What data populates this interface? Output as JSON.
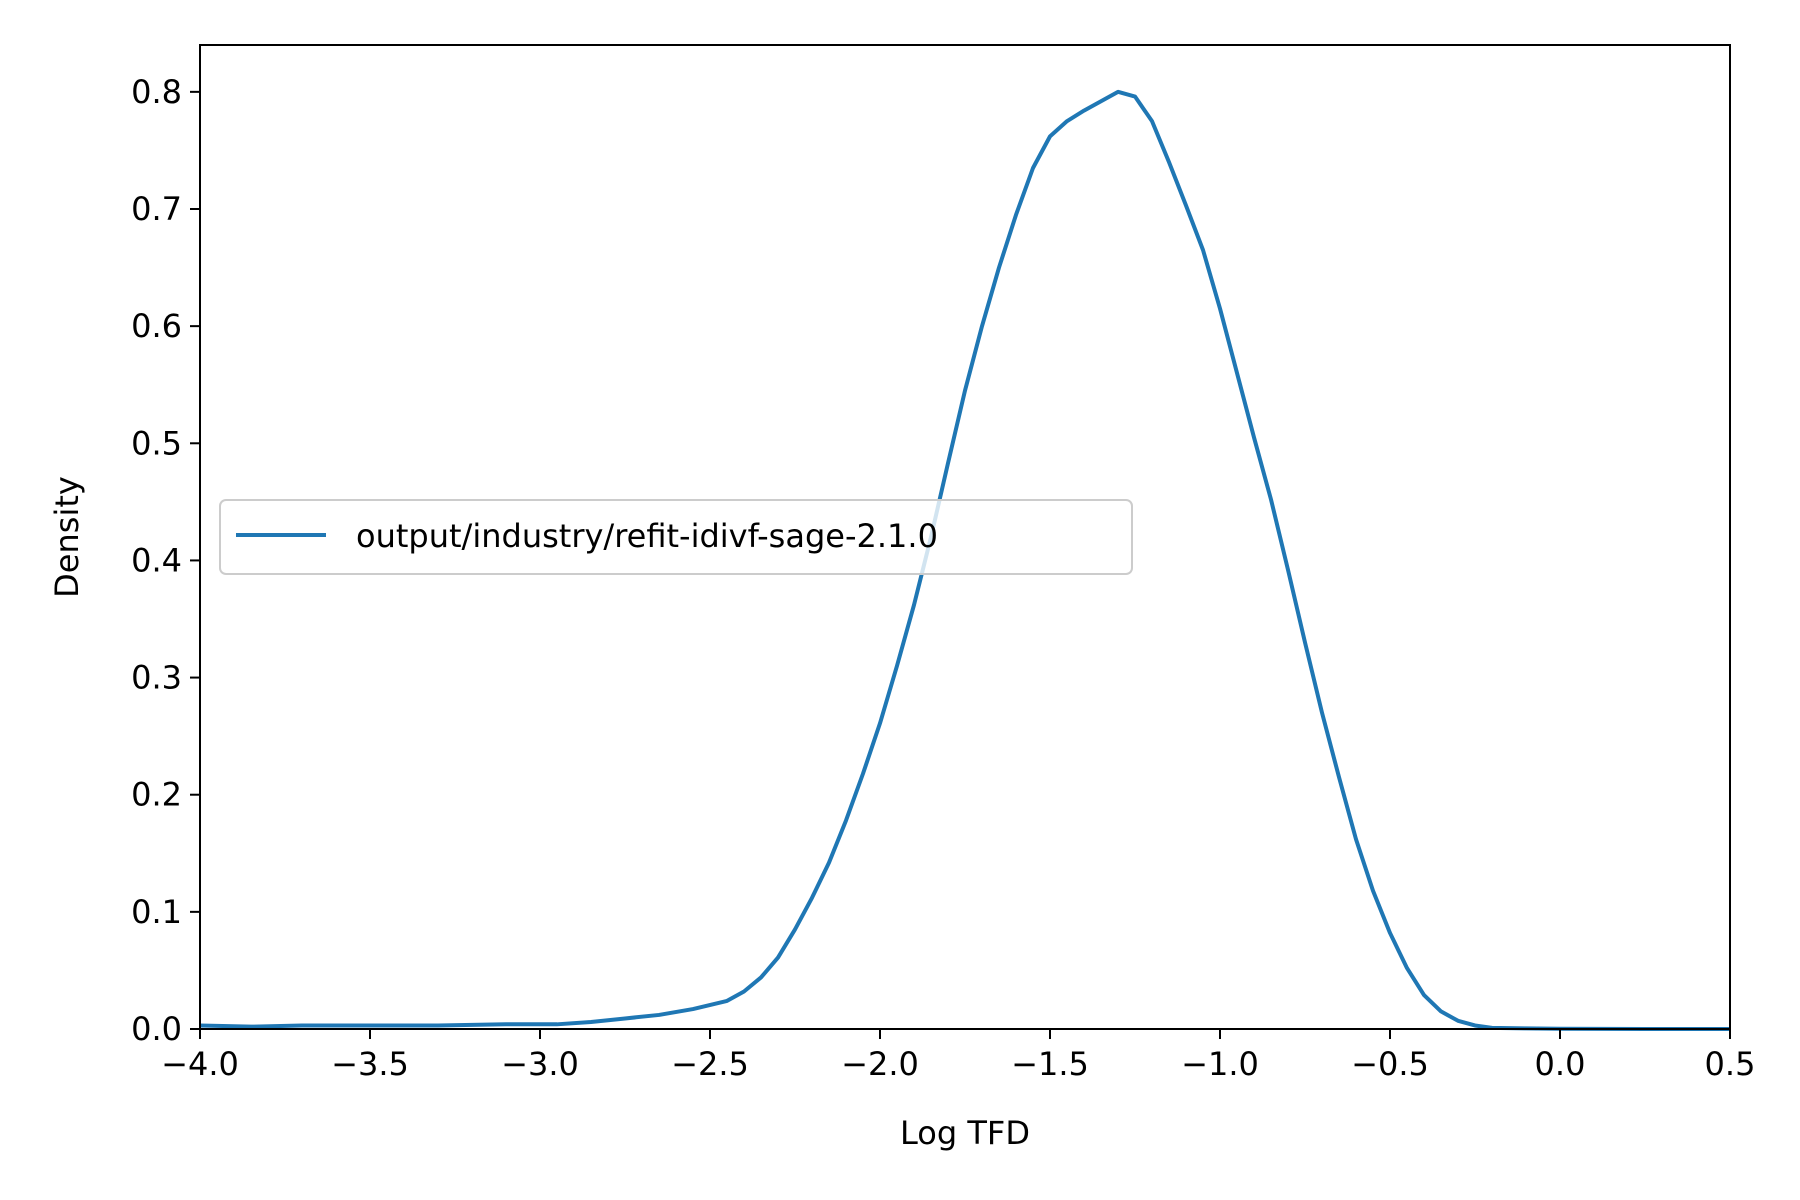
{
  "chart_data": {
    "type": "line",
    "xlabel": "Log TFD",
    "ylabel": "Density",
    "xlim": [
      -4.0,
      0.5
    ],
    "ylim": [
      0.0,
      0.84
    ],
    "x_ticks": [
      "−4.0",
      "−3.5",
      "−3.0",
      "−2.5",
      "−2.0",
      "−1.5",
      "−1.0",
      "−0.5",
      "0.0",
      "0.5"
    ],
    "y_ticks": [
      "0.0",
      "0.1",
      "0.2",
      "0.3",
      "0.4",
      "0.5",
      "0.6",
      "0.7",
      "0.8"
    ],
    "grid": false,
    "legend_position": "center-left",
    "series": [
      {
        "name": "output/industry/refit-idivf-sage-2.1.0",
        "color": "#1f77b4",
        "points": [
          [
            -4.0,
            0.003
          ],
          [
            -3.85,
            0.002
          ],
          [
            -3.7,
            0.003
          ],
          [
            -3.5,
            0.003
          ],
          [
            -3.3,
            0.003
          ],
          [
            -3.1,
            0.004
          ],
          [
            -2.95,
            0.004
          ],
          [
            -2.85,
            0.006
          ],
          [
            -2.75,
            0.009
          ],
          [
            -2.65,
            0.012
          ],
          [
            -2.55,
            0.017
          ],
          [
            -2.45,
            0.024
          ],
          [
            -2.4,
            0.032
          ],
          [
            -2.35,
            0.044
          ],
          [
            -2.3,
            0.061
          ],
          [
            -2.25,
            0.085
          ],
          [
            -2.2,
            0.112
          ],
          [
            -2.15,
            0.142
          ],
          [
            -2.1,
            0.178
          ],
          [
            -2.05,
            0.218
          ],
          [
            -2.0,
            0.261
          ],
          [
            -1.95,
            0.31
          ],
          [
            -1.9,
            0.362
          ],
          [
            -1.85,
            0.42
          ],
          [
            -1.8,
            0.483
          ],
          [
            -1.75,
            0.545
          ],
          [
            -1.7,
            0.6
          ],
          [
            -1.65,
            0.65
          ],
          [
            -1.6,
            0.695
          ],
          [
            -1.55,
            0.735
          ],
          [
            -1.5,
            0.762
          ],
          [
            -1.45,
            0.775
          ],
          [
            -1.4,
            0.784
          ],
          [
            -1.35,
            0.792
          ],
          [
            -1.3,
            0.8
          ],
          [
            -1.25,
            0.796
          ],
          [
            -1.2,
            0.775
          ],
          [
            -1.15,
            0.74
          ],
          [
            -1.1,
            0.703
          ],
          [
            -1.05,
            0.665
          ],
          [
            -1.0,
            0.615
          ],
          [
            -0.95,
            0.56
          ],
          [
            -0.9,
            0.505
          ],
          [
            -0.85,
            0.452
          ],
          [
            -0.8,
            0.392
          ],
          [
            -0.75,
            0.33
          ],
          [
            -0.7,
            0.27
          ],
          [
            -0.65,
            0.215
          ],
          [
            -0.6,
            0.162
          ],
          [
            -0.55,
            0.118
          ],
          [
            -0.5,
            0.082
          ],
          [
            -0.45,
            0.052
          ],
          [
            -0.4,
            0.029
          ],
          [
            -0.35,
            0.015
          ],
          [
            -0.3,
            0.007
          ],
          [
            -0.25,
            0.003
          ],
          [
            -0.2,
            0.001
          ],
          [
            -0.1,
            0.0005
          ],
          [
            0.0,
            0.0002
          ],
          [
            0.25,
            0.0
          ],
          [
            0.5,
            0.0
          ]
        ]
      }
    ]
  }
}
